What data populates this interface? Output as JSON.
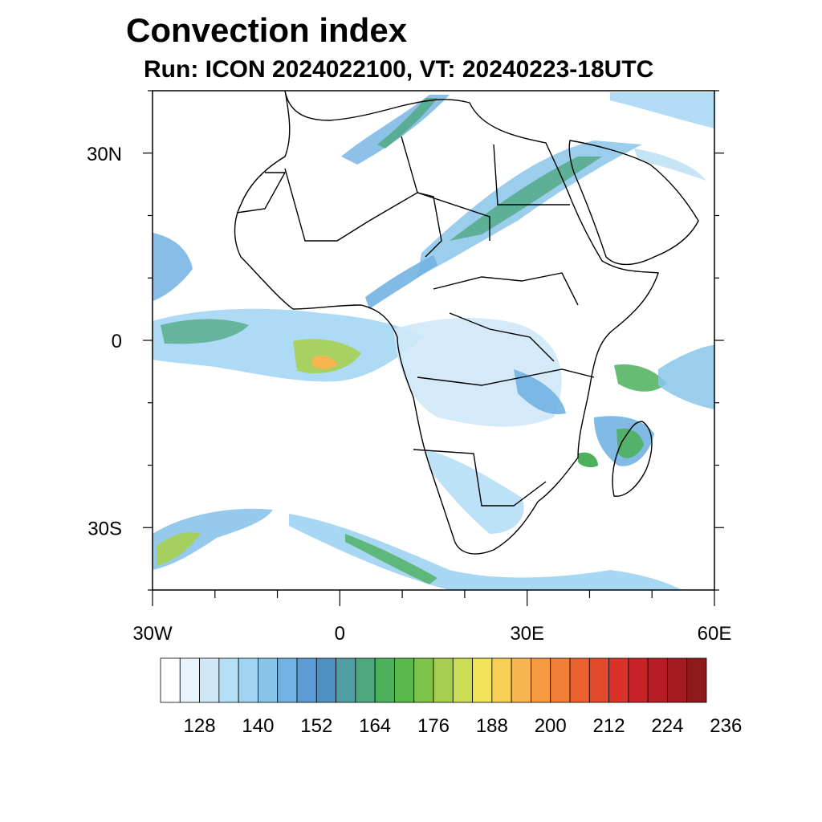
{
  "title": "Convection index",
  "subtitle": "Run: ICON 2024022100,  VT: 20240223-18UTC",
  "map": {
    "lon_range": [
      -30,
      60
    ],
    "lat_range": [
      -40,
      40
    ],
    "lat_ticks": [
      {
        "value": 30,
        "label": "30N"
      },
      {
        "value": 0,
        "label": "0"
      },
      {
        "value": -30,
        "label": "30S"
      }
    ],
    "lon_ticks": [
      {
        "value": -30,
        "label": "30W"
      },
      {
        "value": 0,
        "label": "0"
      },
      {
        "value": 30,
        "label": "30E"
      },
      {
        "value": 60,
        "label": "60E"
      }
    ],
    "minor_lat_ticks": [
      -40,
      -20,
      -10,
      10,
      20,
      40
    ],
    "minor_lon_ticks": [
      -20,
      -10,
      10,
      20,
      40,
      50
    ]
  },
  "colorbar": {
    "colors": [
      "#ffffff",
      "#e8f4fb",
      "#cfe8f7",
      "#b6def5",
      "#9fd3f2",
      "#89c4ea",
      "#72b2e2",
      "#5c9bd3",
      "#4e8fc2",
      "#4f9ea4",
      "#4ea87f",
      "#4cb05c",
      "#59b84a",
      "#7fc24a",
      "#a6cf50",
      "#cadb55",
      "#f0e35a",
      "#f8cf55",
      "#f8b44e",
      "#f69a42",
      "#f27d37",
      "#ec6130",
      "#e2492b",
      "#d93329",
      "#c92228",
      "#b51c25",
      "#a11b20",
      "#8f1a1c"
    ],
    "labels": [
      "128",
      "140",
      "152",
      "164",
      "176",
      "188",
      "200",
      "212",
      "224",
      "236"
    ]
  }
}
